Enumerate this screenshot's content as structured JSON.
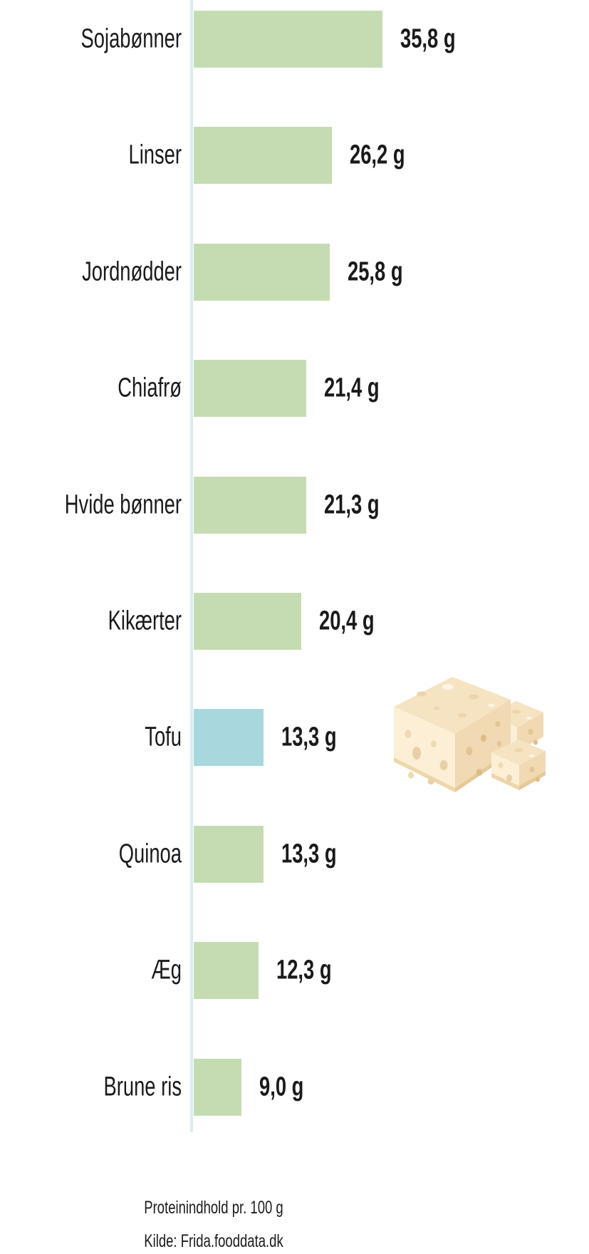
{
  "chart_data": {
    "type": "bar",
    "orientation": "horizontal",
    "title": "Proteinindhold pr. 100 g",
    "source": "Kilde: Frida.fooddata.dk",
    "unit": "g",
    "categories": [
      "Sojabønner",
      "Linser",
      "Jordnødder",
      "Chiafrø",
      "Hvide bønner",
      "Kikærter",
      "Tofu",
      "Quinoa",
      "Æg",
      "Brune ris"
    ],
    "values": [
      35.8,
      26.2,
      25.8,
      21.4,
      21.3,
      20.4,
      13.3,
      13.3,
      12.3,
      9.0
    ],
    "value_labels": [
      "35,8 g",
      "26,2 g",
      "25,8 g",
      "21,4 g",
      "21,3 g",
      "20,4 g",
      "13,3 g",
      "13,3 g",
      "12,3 g",
      "9,0 g"
    ],
    "highlighted_category": "Tofu",
    "highlight_index": 6,
    "xlim": [
      0,
      36
    ],
    "grid": false,
    "legend": false,
    "colors": {
      "bar": "#c5dcb2",
      "highlight": "#a8d7de",
      "axis": "#d9edf0",
      "text": "#1a1a1a"
    }
  },
  "illustration": {
    "name": "tofu-blocks"
  }
}
